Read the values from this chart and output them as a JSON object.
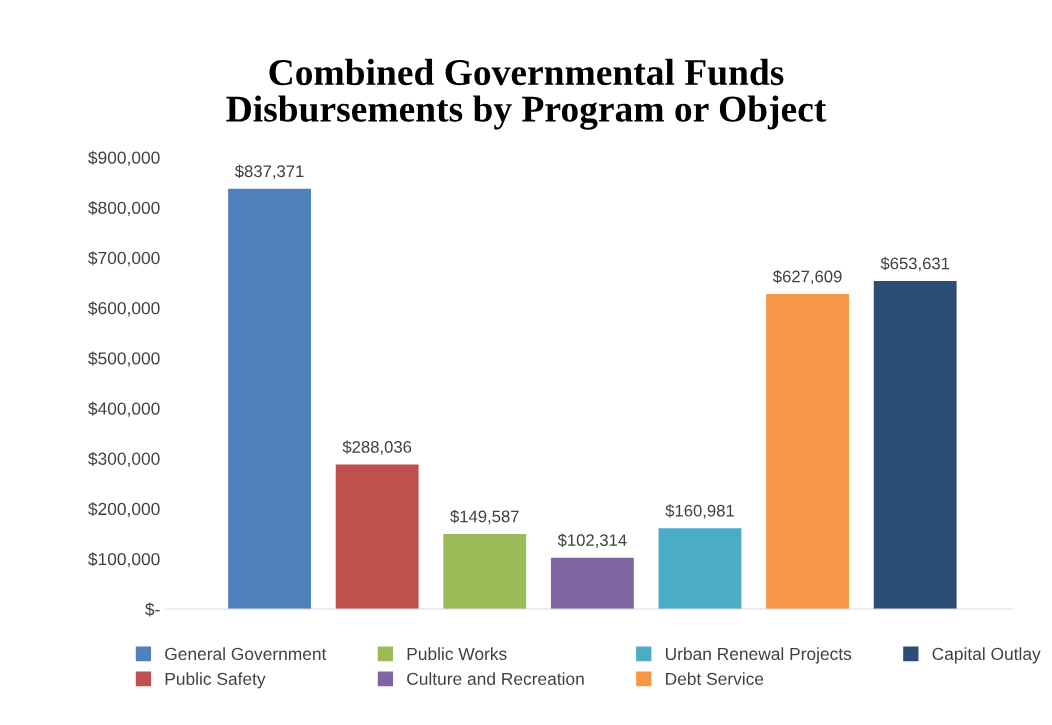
{
  "chart_data": {
    "type": "bar",
    "title": "Combined Governmental Funds\nDisbursements by Program or Object",
    "categories": [
      null,
      null,
      null,
      null,
      null,
      null,
      null
    ],
    "stacked": true,
    "series": [
      {
        "name": "General Government",
        "color": "#4f81bd",
        "values": [
          837371,
          null,
          null,
          null,
          null,
          null,
          null
        ],
        "value_labels": [
          "$837,371",
          null,
          null,
          null,
          null,
          null,
          null
        ]
      },
      {
        "name": "Public Safety",
        "color": "#c0504d",
        "values": [
          null,
          288036,
          null,
          null,
          null,
          null,
          null
        ],
        "value_labels": [
          null,
          "$288,036",
          null,
          null,
          null,
          null,
          null
        ]
      },
      {
        "name": "Public Works",
        "color": "#9bbb59",
        "values": [
          null,
          null,
          149587,
          null,
          null,
          null,
          null
        ],
        "value_labels": [
          null,
          null,
          "$149,587",
          null,
          null,
          null,
          null
        ]
      },
      {
        "name": "Culture and Recreation",
        "color": "#8064a2",
        "values": [
          null,
          null,
          null,
          102314,
          null,
          null,
          null
        ],
        "value_labels": [
          null,
          null,
          null,
          "$102,314",
          null,
          null,
          null
        ]
      },
      {
        "name": "Urban Renewal Projects",
        "color": "#4bacc6",
        "values": [
          null,
          null,
          null,
          null,
          160981,
          null,
          null
        ],
        "value_labels": [
          null,
          null,
          null,
          null,
          "$160,981",
          null,
          null
        ]
      },
      {
        "name": "Debt Service",
        "color": "#f79646",
        "values": [
          null,
          null,
          null,
          null,
          null,
          627609,
          null
        ],
        "value_labels": [
          null,
          null,
          null,
          null,
          null,
          "$627,609",
          null
        ]
      },
      {
        "name": "Capital Outlay",
        "color": "#2c4d75",
        "values": [
          null,
          null,
          null,
          null,
          null,
          null,
          653631
        ],
        "value_labels": [
          null,
          null,
          null,
          null,
          null,
          null,
          "$653,631"
        ]
      }
    ],
    "ylim": [
      0,
      900000
    ],
    "yticks": [
      {
        "value": 0,
        "label": "$-"
      },
      {
        "value": 100000,
        "label": "$100,000"
      },
      {
        "value": 200000,
        "label": "$200,000"
      },
      {
        "value": 300000,
        "label": "$300,000"
      },
      {
        "value": 400000,
        "label": "$400,000"
      },
      {
        "value": 500000,
        "label": "$500,000"
      },
      {
        "value": 600000,
        "label": "$600,000"
      },
      {
        "value": 700000,
        "label": "$700,000"
      },
      {
        "value": 800000,
        "label": "$800,000"
      },
      {
        "value": 900000,
        "label": "$900,000"
      }
    ],
    "grid": false,
    "legend": "bottom"
  }
}
